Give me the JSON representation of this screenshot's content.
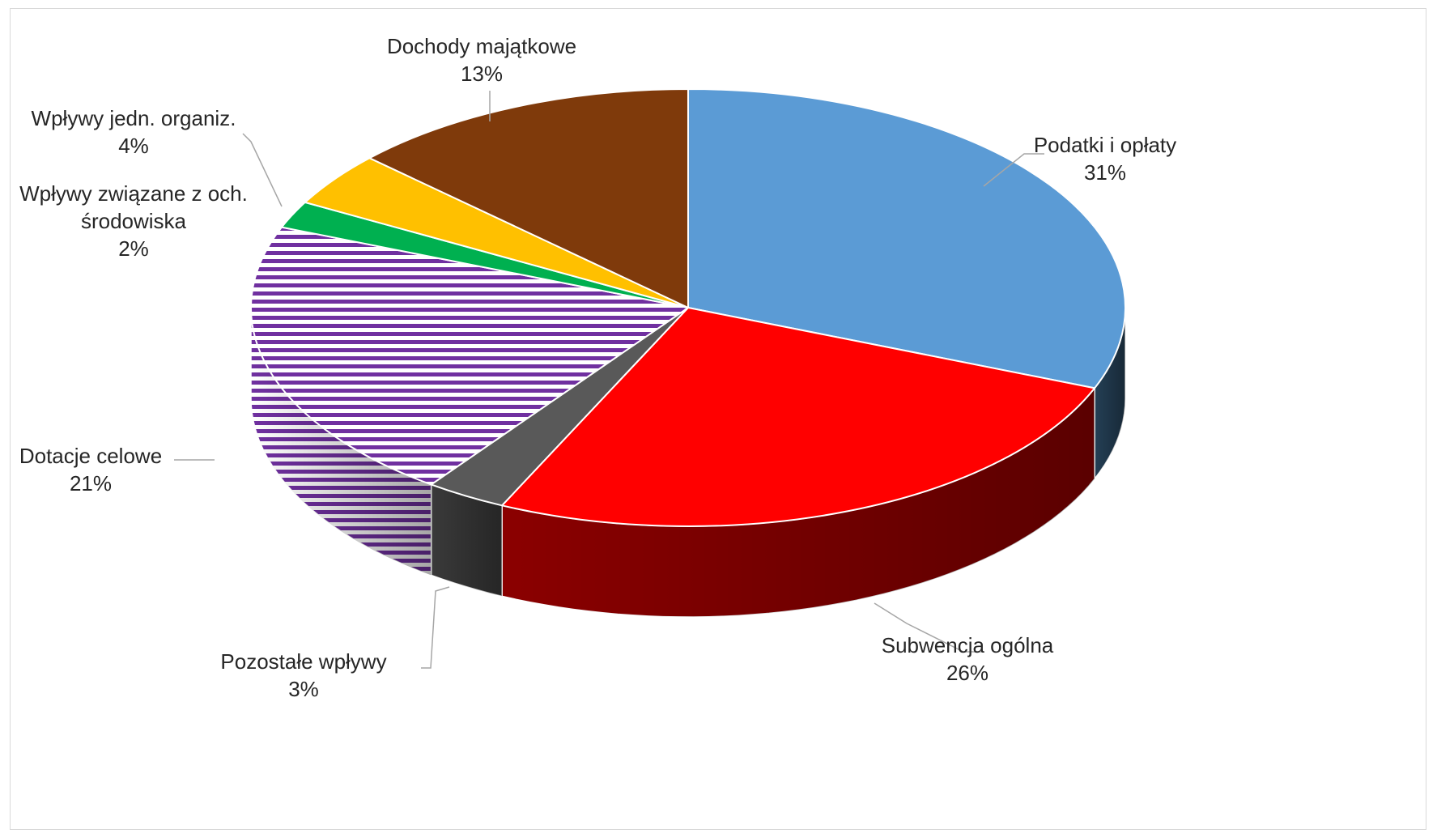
{
  "chart_data": {
    "type": "pie",
    "style": "3d",
    "title": "",
    "series": [
      {
        "name": "Podatki i opłaty",
        "label_lines": [
          "Podatki i opłaty"
        ],
        "value": 31,
        "percent_label": "31%",
        "color": "#5B9BD5",
        "side_color": "#243F55",
        "pattern": "solid"
      },
      {
        "name": "Subwencja ogólna",
        "label_lines": [
          "Subwencja ogólna"
        ],
        "value": 26,
        "percent_label": "26%",
        "color": "#FF0000",
        "side_color": "#8B0000",
        "pattern": "solid"
      },
      {
        "name": "Pozostałe wpływy",
        "label_lines": [
          "Pozostałe wpływy"
        ],
        "value": 3,
        "percent_label": "3%",
        "color": "#595959",
        "side_color": "#3A3A3A",
        "pattern": "solid"
      },
      {
        "name": "Dotacje celowe",
        "label_lines": [
          "Dotacje celowe"
        ],
        "value": 21,
        "percent_label": "21%",
        "color": "#7030A0",
        "side_color": "#7030A0",
        "pattern": "horizontal-stripes"
      },
      {
        "name": "Wpływy związane z och. środowiska",
        "label_lines": [
          "Wpływy związane z och.",
          "środowiska"
        ],
        "value": 2,
        "percent_label": "2%",
        "color": "#00B050",
        "side_color": "#006E32",
        "pattern": "solid"
      },
      {
        "name": "Wpływy jedn. organiz.",
        "label_lines": [
          "Wpływy jedn. organiz."
        ],
        "value": 4,
        "percent_label": "4%",
        "color": "#FFC000",
        "side_color": "#A67C00",
        "pattern": "solid"
      },
      {
        "name": "Dochody majątkowe",
        "label_lines": [
          "Dochody majątkowe"
        ],
        "value": 13,
        "percent_label": "13%",
        "color": "#7F3A0B",
        "side_color": "#4A2106",
        "pattern": "solid"
      }
    ],
    "legend": "none",
    "data_labels": "category name and percentage, outside with leader lines"
  }
}
